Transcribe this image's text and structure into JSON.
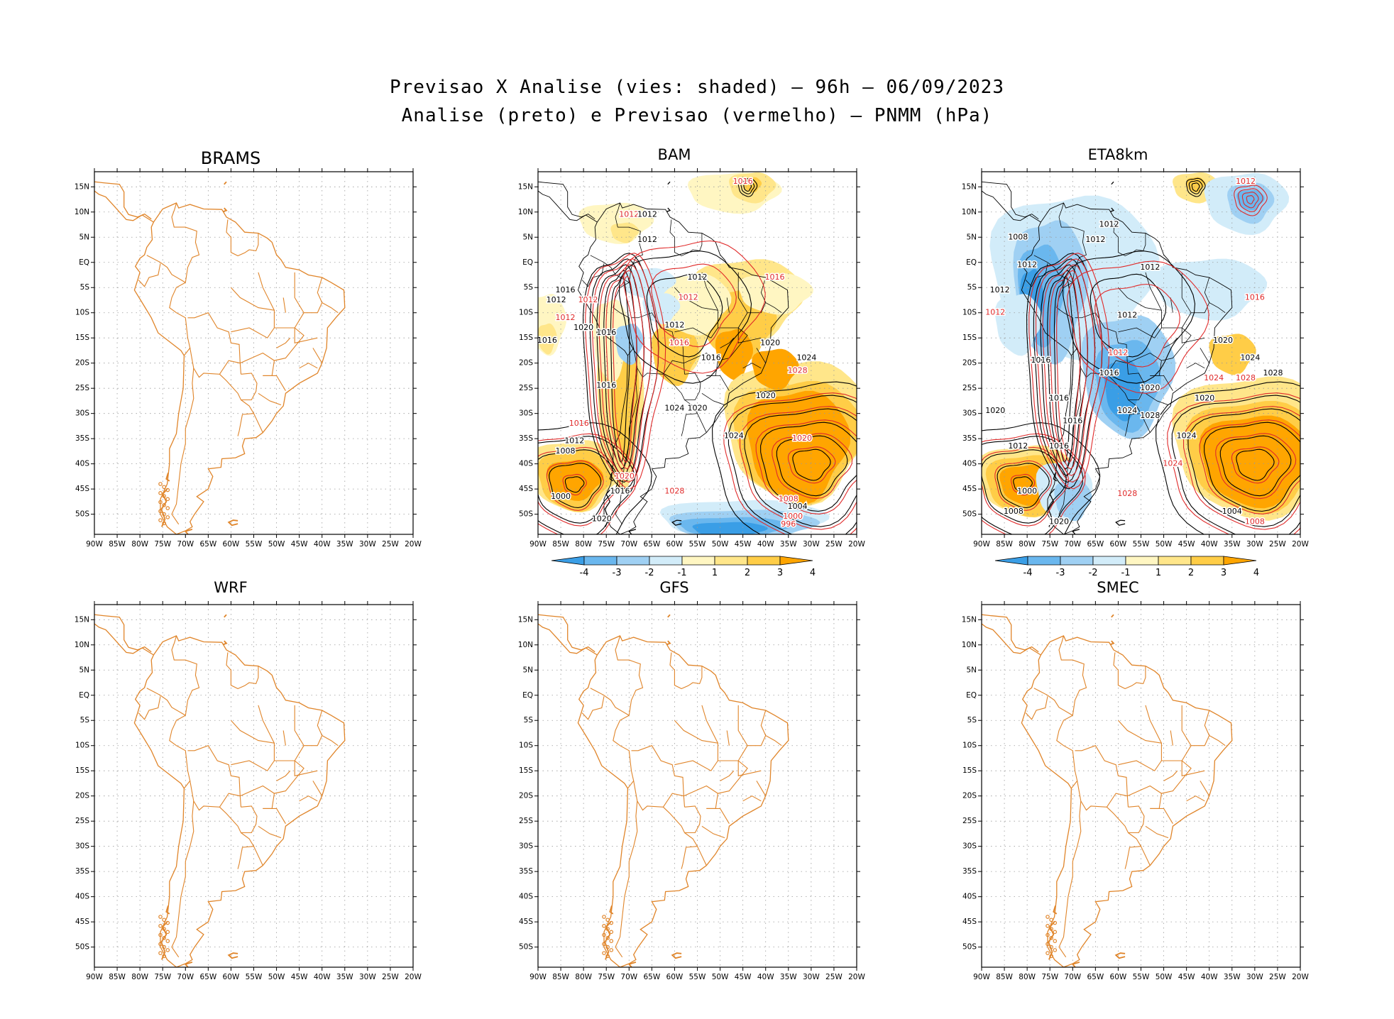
{
  "title_line1": "Previsao X Analise (vies: shaded) – 96h – 06/09/2023",
  "title_line2": "Analise (preto) e Previsao (vermelho) – PNMM (hPa)",
  "lat_ticks": [
    "15N",
    "10N",
    "5N",
    "EQ",
    "5S",
    "10S",
    "15S",
    "20S",
    "25S",
    "30S",
    "35S",
    "40S",
    "45S",
    "50S"
  ],
  "lon_ticks": [
    "90W",
    "85W",
    "80W",
    "75W",
    "70W",
    "65W",
    "60W",
    "55W",
    "50W",
    "45W",
    "40W",
    "35W",
    "30W",
    "25W",
    "20W"
  ],
  "colorbar_labels": [
    "-4",
    "-3",
    "-2",
    "-1",
    "1",
    "2",
    "3",
    "4"
  ],
  "colors": {
    "coast": "#e0852a",
    "neg4": "#3a9ee6",
    "neg3": "#6ab7ee",
    "neg2": "#9fd0f3",
    "neg1": "#d2ecf9",
    "pos1": "#fff6c2",
    "pos2": "#ffe68a",
    "pos3": "#ffcd47",
    "pos4": "#ffa500",
    "analysis": "#000000",
    "forecast": "#e02a2a"
  },
  "panels": [
    {
      "id": "brams",
      "title": "BRAMS",
      "shaded": false
    },
    {
      "id": "bam",
      "title": "BAM",
      "shaded": true,
      "contour_labels": [
        {
          "t": "1016",
          "c": "forecast",
          "lon": -45,
          "lat": 16
        },
        {
          "t": "1012",
          "c": "forecast",
          "lon": -70,
          "lat": 9.5
        },
        {
          "t": "1012",
          "c": "analysis",
          "lon": -66,
          "lat": 9.5
        },
        {
          "t": "1012",
          "c": "analysis",
          "lon": -66,
          "lat": 4.5
        },
        {
          "t": "1012",
          "c": "analysis",
          "lon": -55,
          "lat": -3
        },
        {
          "t": "1016",
          "c": "forecast",
          "lon": -38,
          "lat": -3
        },
        {
          "t": "1016",
          "c": "analysis",
          "lon": -84,
          "lat": -5.5
        },
        {
          "t": "1012",
          "c": "analysis",
          "lon": -86,
          "lat": -7.5
        },
        {
          "t": "1012",
          "c": "forecast",
          "lon": -79,
          "lat": -7.5
        },
        {
          "t": "1012",
          "c": "forecast",
          "lon": -84,
          "lat": -11
        },
        {
          "t": "1020",
          "c": "analysis",
          "lon": -80,
          "lat": -13
        },
        {
          "t": "1016",
          "c": "analysis",
          "lon": -75,
          "lat": -14
        },
        {
          "t": "1012",
          "c": "forecast",
          "lon": -57,
          "lat": -7
        },
        {
          "t": "1012",
          "c": "analysis",
          "lon": -60,
          "lat": -12.5
        },
        {
          "t": "1016",
          "c": "forecast",
          "lon": -59,
          "lat": -16
        },
        {
          "t": "1016",
          "c": "analysis",
          "lon": -88,
          "lat": -15.5
        },
        {
          "t": "1020",
          "c": "analysis",
          "lon": -39,
          "lat": -16
        },
        {
          "t": "1024",
          "c": "analysis",
          "lon": -31,
          "lat": -19
        },
        {
          "t": "1016",
          "c": "analysis",
          "lon": -52,
          "lat": -19
        },
        {
          "t": "1028",
          "c": "forecast",
          "lon": -33,
          "lat": -21.5
        },
        {
          "t": "1016",
          "c": "analysis",
          "lon": -75,
          "lat": -24.5
        },
        {
          "t": "1020",
          "c": "analysis",
          "lon": -40,
          "lat": -26.5
        },
        {
          "t": "1024",
          "c": "analysis",
          "lon": -60,
          "lat": -29
        },
        {
          "t": "1020",
          "c": "analysis",
          "lon": -55,
          "lat": -29
        },
        {
          "t": "1016",
          "c": "forecast",
          "lon": -81,
          "lat": -32
        },
        {
          "t": "1012",
          "c": "analysis",
          "lon": -82,
          "lat": -35.5
        },
        {
          "t": "1008",
          "c": "analysis",
          "lon": -84,
          "lat": -37.5
        },
        {
          "t": "1024",
          "c": "analysis",
          "lon": -47,
          "lat": -34.5
        },
        {
          "t": "1020",
          "c": "forecast",
          "lon": -32,
          "lat": -35
        },
        {
          "t": "1000",
          "c": "analysis",
          "lon": -85,
          "lat": -46.5
        },
        {
          "t": "1016",
          "c": "analysis",
          "lon": -72,
          "lat": -45.5
        },
        {
          "t": "1020",
          "c": "forecast",
          "lon": -71,
          "lat": -42.5
        },
        {
          "t": "1028",
          "c": "forecast",
          "lon": -60,
          "lat": -45.5
        },
        {
          "t": "1008",
          "c": "forecast",
          "lon": -35,
          "lat": -47
        },
        {
          "t": "1004",
          "c": "analysis",
          "lon": -33,
          "lat": -48.5
        },
        {
          "t": "1000",
          "c": "forecast",
          "lon": -34,
          "lat": -50.5
        },
        {
          "t": "996",
          "c": "forecast",
          "lon": -35,
          "lat": -52
        },
        {
          "t": "1020",
          "c": "analysis",
          "lon": -76,
          "lat": -51
        }
      ]
    },
    {
      "id": "eta8km",
      "title": "ETA8km",
      "shaded": true,
      "contour_labels": [
        {
          "t": "1012",
          "c": "forecast",
          "lon": -32,
          "lat": 16
        },
        {
          "t": "1012",
          "c": "analysis",
          "lon": -62,
          "lat": 7.5
        },
        {
          "t": "1008",
          "c": "analysis",
          "lon": -82,
          "lat": 5
        },
        {
          "t": "1012",
          "c": "analysis",
          "lon": -65,
          "lat": 4.5
        },
        {
          "t": "1012",
          "c": "analysis",
          "lon": -80,
          "lat": -0.5
        },
        {
          "t": "1012",
          "c": "analysis",
          "lon": -53,
          "lat": -1
        },
        {
          "t": "1012",
          "c": "analysis",
          "lon": -86,
          "lat": -5.5
        },
        {
          "t": "1016",
          "c": "forecast",
          "lon": -30,
          "lat": -7
        },
        {
          "t": "1012",
          "c": "forecast",
          "lon": -87,
          "lat": -10
        },
        {
          "t": "1012",
          "c": "analysis",
          "lon": -58,
          "lat": -10.5
        },
        {
          "t": "1020",
          "c": "analysis",
          "lon": -37,
          "lat": -15.5
        },
        {
          "t": "1012",
          "c": "forecast",
          "lon": -60,
          "lat": -18
        },
        {
          "t": "1016",
          "c": "analysis",
          "lon": -77,
          "lat": -19.5
        },
        {
          "t": "1016",
          "c": "analysis",
          "lon": -62,
          "lat": -22
        },
        {
          "t": "1024",
          "c": "analysis",
          "lon": -31,
          "lat": -19
        },
        {
          "t": "1028",
          "c": "analysis",
          "lon": -26,
          "lat": -22
        },
        {
          "t": "1028",
          "c": "forecast",
          "lon": -32,
          "lat": -23
        },
        {
          "t": "1024",
          "c": "forecast",
          "lon": -39,
          "lat": -23
        },
        {
          "t": "1020",
          "c": "analysis",
          "lon": -53,
          "lat": -25
        },
        {
          "t": "1020",
          "c": "analysis",
          "lon": -41,
          "lat": -27
        },
        {
          "t": "1016",
          "c": "analysis",
          "lon": -73,
          "lat": -27
        },
        {
          "t": "1024",
          "c": "analysis",
          "lon": -58,
          "lat": -29.5
        },
        {
          "t": "1020",
          "c": "analysis",
          "lon": -87,
          "lat": -29.5
        },
        {
          "t": "1016",
          "c": "analysis",
          "lon": -70,
          "lat": -31.5
        },
        {
          "t": "1028",
          "c": "analysis",
          "lon": -53,
          "lat": -30.5
        },
        {
          "t": "1012",
          "c": "analysis",
          "lon": -82,
          "lat": -36.5
        },
        {
          "t": "1016",
          "c": "analysis",
          "lon": -73,
          "lat": -36.5
        },
        {
          "t": "1024",
          "c": "analysis",
          "lon": -45,
          "lat": -34.5
        },
        {
          "t": "1024",
          "c": "forecast",
          "lon": -48,
          "lat": -40
        },
        {
          "t": "1000",
          "c": "analysis",
          "lon": -80,
          "lat": -45.5
        },
        {
          "t": "1008",
          "c": "analysis",
          "lon": -83,
          "lat": -49.5
        },
        {
          "t": "1028",
          "c": "forecast",
          "lon": -58,
          "lat": -46
        },
        {
          "t": "1004",
          "c": "analysis",
          "lon": -35,
          "lat": -49.5
        },
        {
          "t": "1008",
          "c": "forecast",
          "lon": -30,
          "lat": -51.5
        },
        {
          "t": "1020",
          "c": "analysis",
          "lon": -73,
          "lat": -51.5
        }
      ]
    },
    {
      "id": "wrf",
      "title": "WRF",
      "shaded": false
    },
    {
      "id": "gfs",
      "title": "GFS",
      "shaded": false
    },
    {
      "id": "smec",
      "title": "SMEC",
      "shaded": false
    }
  ]
}
